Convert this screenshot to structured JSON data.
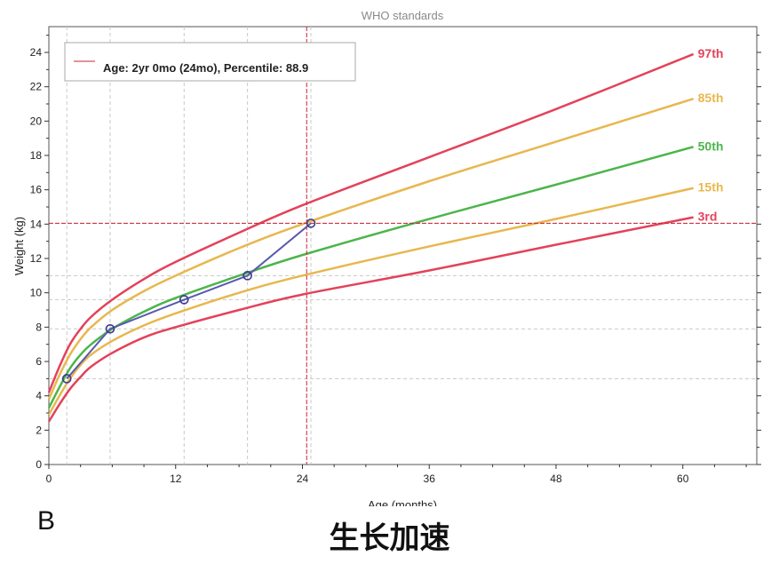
{
  "chart_data": {
    "type": "line",
    "title": "WHO standards",
    "xlabel": "Age (months)",
    "ylabel": "Weight (kg)",
    "xlim": [
      0,
      67
    ],
    "ylim": [
      0,
      25.5
    ],
    "x_ticks": [
      0,
      12,
      24,
      36,
      48,
      60
    ],
    "y_ticks": [
      0,
      2,
      4,
      6,
      8,
      10,
      12,
      14,
      16,
      18,
      20,
      22,
      24
    ],
    "grid": true,
    "x": [
      0,
      1,
      2,
      3,
      4,
      6,
      9,
      12,
      18,
      24,
      36,
      48,
      61
    ],
    "series": [
      {
        "name": "97th",
        "color": "#e3425a",
        "values": [
          4.2,
          5.7,
          7.0,
          7.9,
          8.6,
          9.6,
          10.8,
          11.8,
          13.5,
          15.1,
          17.9,
          20.7,
          23.9
        ]
      },
      {
        "name": "85th",
        "color": "#e8b74e",
        "values": [
          3.8,
          5.2,
          6.4,
          7.3,
          8.0,
          9.0,
          10.1,
          11.0,
          12.6,
          14.0,
          16.5,
          18.8,
          21.3
        ]
      },
      {
        "name": "50th",
        "color": "#4cb54a",
        "values": [
          3.3,
          4.5,
          5.6,
          6.4,
          7.0,
          7.9,
          8.9,
          9.7,
          11.0,
          12.2,
          14.3,
          16.3,
          18.5
        ]
      },
      {
        "name": "15th",
        "color": "#e8b74e",
        "values": [
          2.9,
          4.0,
          5.0,
          5.8,
          6.4,
          7.2,
          8.1,
          8.8,
          10.0,
          11.0,
          12.7,
          14.3,
          16.1
        ]
      },
      {
        "name": "3rd",
        "color": "#e3425a",
        "values": [
          2.5,
          3.5,
          4.4,
          5.1,
          5.7,
          6.5,
          7.4,
          8.0,
          9.0,
          9.9,
          11.3,
          12.8,
          14.4
        ]
      }
    ],
    "measurements": {
      "color": "#5a5ab0",
      "points": [
        {
          "x": 1.7,
          "y": 5.0
        },
        {
          "x": 5.8,
          "y": 7.9
        },
        {
          "x": 12.8,
          "y": 9.6
        },
        {
          "x": 18.8,
          "y": 11.0
        },
        {
          "x": 24.8,
          "y": 14.05
        }
      ]
    },
    "crosshair": {
      "x": 24.4,
      "y": 14.05,
      "color": "#cc2233"
    },
    "legend": {
      "placement": "top-left",
      "text": "Age: 2yr 0mo (24mo), Percentile: 88.9"
    }
  },
  "panel_label": "B",
  "caption": "生长加速"
}
